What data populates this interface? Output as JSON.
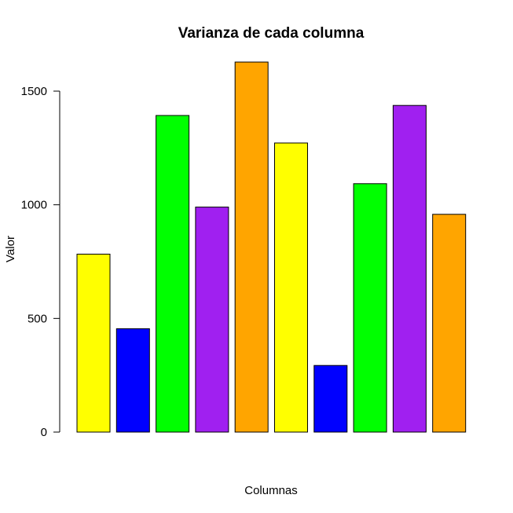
{
  "chart_data": {
    "type": "bar",
    "title": "Varianza de cada columna",
    "xlabel": "Columnas",
    "ylabel": "Valor",
    "ylim": [
      0,
      1500
    ],
    "yticks": [
      0,
      500,
      1000,
      1500
    ],
    "grid": false,
    "values": [
      783,
      455,
      1393,
      990,
      1628,
      1272,
      293,
      1093,
      1437,
      958
    ],
    "colors": [
      "#ffff00",
      "#0000ff",
      "#00ff00",
      "#a020f0",
      "#ffa500",
      "#ffff00",
      "#0000ff",
      "#00ff00",
      "#a020f0",
      "#ffa500"
    ]
  }
}
